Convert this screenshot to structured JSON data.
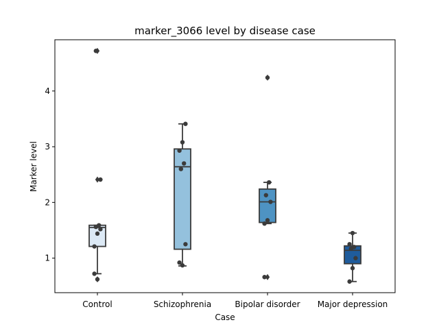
{
  "chart_data": {
    "type": "box",
    "title": "marker_3066 level by disease case",
    "xlabel": "Case",
    "ylabel": "Marker level",
    "categories": [
      "Control",
      "Schizophrenia",
      "Bipolar disorder",
      "Major depression"
    ],
    "ylim": [
      0.38,
      4.92
    ],
    "yticks": [
      1,
      2,
      3,
      4
    ],
    "grid": false,
    "boxes": [
      {
        "name": "Control",
        "color": "#dce9f5",
        "q1": 1.21,
        "median": 1.55,
        "q3": 1.59,
        "whisker_low": 0.72,
        "whisker_high": 1.59,
        "outliers": [
          0.62,
          2.41,
          4.72
        ],
        "points": [
          1.21,
          1.44,
          1.52,
          1.56,
          1.59,
          0.72,
          0.62,
          2.41,
          4.72
        ]
      },
      {
        "name": "Schizophrenia",
        "color": "#94c1dd",
        "q1": 1.16,
        "median": 2.64,
        "q3": 2.96,
        "whisker_low": 0.86,
        "whisker_high": 3.41,
        "outliers": [],
        "points": [
          0.92,
          0.87,
          1.25,
          2.6,
          2.7,
          2.93,
          3.08,
          3.41
        ]
      },
      {
        "name": "Bipolar disorder",
        "color": "#4e93c3",
        "q1": 1.64,
        "median": 2.01,
        "q3": 2.24,
        "whisker_low": 1.62,
        "whisker_high": 2.36,
        "outliers": [
          0.66,
          4.24
        ],
        "points": [
          1.62,
          1.68,
          2.01,
          2.13,
          2.36,
          0.66,
          4.24
        ]
      },
      {
        "name": "Major depression",
        "color": "#1f5c9c",
        "q1": 0.9,
        "median": 1.14,
        "q3": 1.22,
        "whisker_low": 0.58,
        "whisker_high": 1.45,
        "outliers": [],
        "points": [
          0.58,
          0.82,
          1.0,
          1.17,
          1.2,
          1.25,
          1.45
        ]
      }
    ]
  }
}
